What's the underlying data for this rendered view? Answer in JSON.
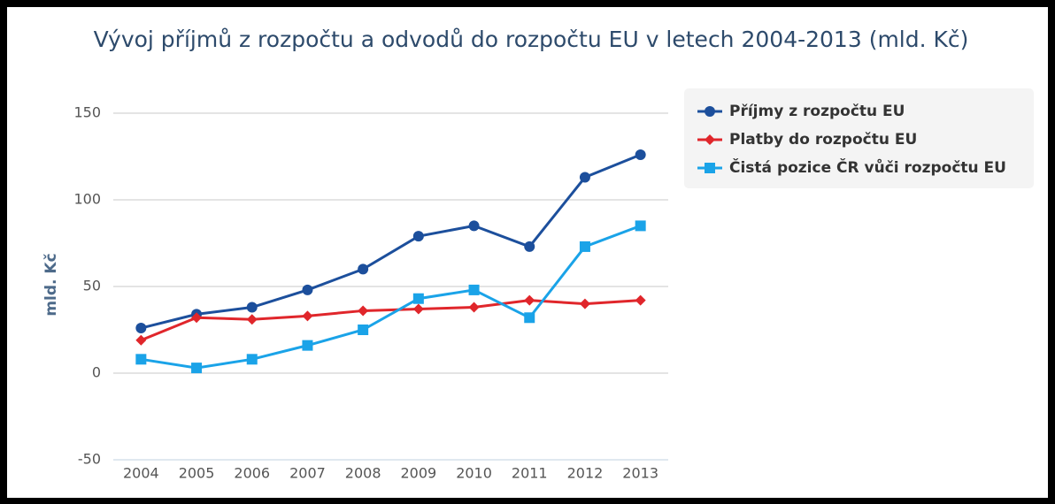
{
  "chart_data": {
    "type": "line",
    "title": "Vývoj příjmů z rozpočtu a odvodů do rozpočtu EU v letech 2004-2013 (mld. Kč)",
    "y_label": "mld. Kč",
    "categories": [
      "2004",
      "2005",
      "2006",
      "2007",
      "2008",
      "2009",
      "2010",
      "2011",
      "2012",
      "2013"
    ],
    "series": [
      {
        "name": "Příjmy z rozpočtu EU",
        "color": "#1c4f9c",
        "marker": "circle",
        "values": [
          26,
          34,
          38,
          48,
          60,
          79,
          85,
          73,
          113,
          126
        ]
      },
      {
        "name": "Platby do rozpočtu EU",
        "color": "#e0262b",
        "marker": "diamond",
        "values": [
          19,
          32,
          31,
          33,
          36,
          37,
          38,
          42,
          40,
          42
        ]
      },
      {
        "name": "Čistá pozice ČR vůči rozpočtu EU",
        "color": "#1aa3e8",
        "marker": "square",
        "values": [
          8,
          3,
          8,
          16,
          25,
          43,
          48,
          32,
          73,
          85
        ]
      }
    ],
    "ylim": [
      -50,
      150
    ],
    "yticks": [
      -50,
      0,
      50,
      100,
      150
    ],
    "grid": true,
    "legend": "right"
  }
}
